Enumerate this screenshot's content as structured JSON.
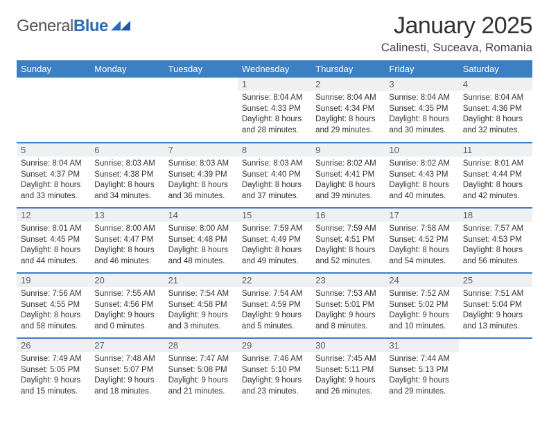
{
  "brand": {
    "word1": "General",
    "word2": "Blue"
  },
  "title": "January 2025",
  "location": "Calinesti, Suceava, Romania",
  "colors": {
    "header_bg": "#3c80c3",
    "header_text": "#ffffff",
    "daynum_bg": "#eef0f2",
    "daynum_text": "#5a5f66",
    "row_border": "#3c80c3",
    "logo_blue": "#2a6db5",
    "text": "#333333"
  },
  "weekdays": [
    "Sunday",
    "Monday",
    "Tuesday",
    "Wednesday",
    "Thursday",
    "Friday",
    "Saturday"
  ],
  "weeks": [
    [
      null,
      null,
      null,
      {
        "n": "1",
        "sr": "8:04 AM",
        "ss": "4:33 PM",
        "dh": "8",
        "dm": "28"
      },
      {
        "n": "2",
        "sr": "8:04 AM",
        "ss": "4:34 PM",
        "dh": "8",
        "dm": "29"
      },
      {
        "n": "3",
        "sr": "8:04 AM",
        "ss": "4:35 PM",
        "dh": "8",
        "dm": "30"
      },
      {
        "n": "4",
        "sr": "8:04 AM",
        "ss": "4:36 PM",
        "dh": "8",
        "dm": "32"
      }
    ],
    [
      {
        "n": "5",
        "sr": "8:04 AM",
        "ss": "4:37 PM",
        "dh": "8",
        "dm": "33"
      },
      {
        "n": "6",
        "sr": "8:03 AM",
        "ss": "4:38 PM",
        "dh": "8",
        "dm": "34"
      },
      {
        "n": "7",
        "sr": "8:03 AM",
        "ss": "4:39 PM",
        "dh": "8",
        "dm": "36"
      },
      {
        "n": "8",
        "sr": "8:03 AM",
        "ss": "4:40 PM",
        "dh": "8",
        "dm": "37"
      },
      {
        "n": "9",
        "sr": "8:02 AM",
        "ss": "4:41 PM",
        "dh": "8",
        "dm": "39"
      },
      {
        "n": "10",
        "sr": "8:02 AM",
        "ss": "4:43 PM",
        "dh": "8",
        "dm": "40"
      },
      {
        "n": "11",
        "sr": "8:01 AM",
        "ss": "4:44 PM",
        "dh": "8",
        "dm": "42"
      }
    ],
    [
      {
        "n": "12",
        "sr": "8:01 AM",
        "ss": "4:45 PM",
        "dh": "8",
        "dm": "44"
      },
      {
        "n": "13",
        "sr": "8:00 AM",
        "ss": "4:47 PM",
        "dh": "8",
        "dm": "46"
      },
      {
        "n": "14",
        "sr": "8:00 AM",
        "ss": "4:48 PM",
        "dh": "8",
        "dm": "48"
      },
      {
        "n": "15",
        "sr": "7:59 AM",
        "ss": "4:49 PM",
        "dh": "8",
        "dm": "49"
      },
      {
        "n": "16",
        "sr": "7:59 AM",
        "ss": "4:51 PM",
        "dh": "8",
        "dm": "52"
      },
      {
        "n": "17",
        "sr": "7:58 AM",
        "ss": "4:52 PM",
        "dh": "8",
        "dm": "54"
      },
      {
        "n": "18",
        "sr": "7:57 AM",
        "ss": "4:53 PM",
        "dh": "8",
        "dm": "56"
      }
    ],
    [
      {
        "n": "19",
        "sr": "7:56 AM",
        "ss": "4:55 PM",
        "dh": "8",
        "dm": "58"
      },
      {
        "n": "20",
        "sr": "7:55 AM",
        "ss": "4:56 PM",
        "dh": "9",
        "dm": "0"
      },
      {
        "n": "21",
        "sr": "7:54 AM",
        "ss": "4:58 PM",
        "dh": "9",
        "dm": "3"
      },
      {
        "n": "22",
        "sr": "7:54 AM",
        "ss": "4:59 PM",
        "dh": "9",
        "dm": "5"
      },
      {
        "n": "23",
        "sr": "7:53 AM",
        "ss": "5:01 PM",
        "dh": "9",
        "dm": "8"
      },
      {
        "n": "24",
        "sr": "7:52 AM",
        "ss": "5:02 PM",
        "dh": "9",
        "dm": "10"
      },
      {
        "n": "25",
        "sr": "7:51 AM",
        "ss": "5:04 PM",
        "dh": "9",
        "dm": "13"
      }
    ],
    [
      {
        "n": "26",
        "sr": "7:49 AM",
        "ss": "5:05 PM",
        "dh": "9",
        "dm": "15"
      },
      {
        "n": "27",
        "sr": "7:48 AM",
        "ss": "5:07 PM",
        "dh": "9",
        "dm": "18"
      },
      {
        "n": "28",
        "sr": "7:47 AM",
        "ss": "5:08 PM",
        "dh": "9",
        "dm": "21"
      },
      {
        "n": "29",
        "sr": "7:46 AM",
        "ss": "5:10 PM",
        "dh": "9",
        "dm": "23"
      },
      {
        "n": "30",
        "sr": "7:45 AM",
        "ss": "5:11 PM",
        "dh": "9",
        "dm": "26"
      },
      {
        "n": "31",
        "sr": "7:44 AM",
        "ss": "5:13 PM",
        "dh": "9",
        "dm": "29"
      },
      null
    ]
  ],
  "labels": {
    "sunrise_prefix": "Sunrise: ",
    "sunset_prefix": "Sunset: ",
    "daylight_prefix": "Daylight: ",
    "hours_word": " hours",
    "and_word": "and ",
    "minutes_word": " minutes."
  }
}
